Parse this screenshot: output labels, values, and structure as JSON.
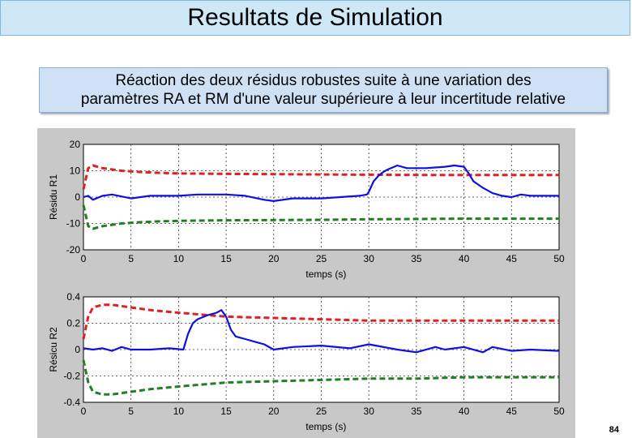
{
  "header": {
    "title": "Resultats de Simulation"
  },
  "subtitle": {
    "line1": "Réaction des deux résidus robustes suite à une variation des",
    "line2": "paramètres RA et RM d'une valeur supérieure à leur incertitude relative"
  },
  "footer": {
    "page_number": "84"
  },
  "colors": {
    "upper_threshold": "#dd2222",
    "residual": "#1010e0",
    "lower_threshold": "#208020",
    "panel": "#c8c8c8"
  },
  "chart_data": [
    {
      "type": "line",
      "title": "",
      "xlabel": "temps (s)",
      "ylabel": "Résidu R1",
      "xlim": [
        0,
        50
      ],
      "ylim": [
        -20,
        20
      ],
      "xticks": [
        0,
        5,
        10,
        15,
        20,
        25,
        30,
        35,
        40,
        45,
        50
      ],
      "yticks": [
        -20,
        -10,
        0,
        10,
        20
      ],
      "grid": true,
      "series": [
        {
          "role": "upper",
          "style": "dashed",
          "color": "#dd2222",
          "x": [
            0,
            0.5,
            1,
            2,
            4,
            6,
            8,
            10,
            15,
            20,
            25,
            30,
            35,
            40,
            45,
            50
          ],
          "values": [
            3,
            11,
            12,
            11,
            10,
            9.5,
            9.2,
            9,
            8.8,
            8.7,
            8.6,
            8.5,
            8.4,
            8.4,
            8.4,
            8.4
          ]
        },
        {
          "role": "lower",
          "style": "dashed",
          "color": "#208020",
          "x": [
            0,
            0.5,
            1,
            2,
            4,
            6,
            8,
            10,
            15,
            20,
            25,
            30,
            35,
            40,
            45,
            50
          ],
          "values": [
            -3,
            -11,
            -12,
            -11,
            -10,
            -9.5,
            -9.2,
            -9,
            -8.8,
            -8.7,
            -8.6,
            -8.4,
            -8.3,
            -8.2,
            -8.2,
            -8.2
          ]
        },
        {
          "role": "residual",
          "style": "solid",
          "color": "#1010e0",
          "x": [
            0,
            0.5,
            1,
            2,
            3,
            5,
            7,
            10,
            12,
            15,
            17,
            19,
            20,
            22,
            25,
            27,
            29,
            29.8,
            30,
            30.5,
            31,
            31.5,
            32,
            33,
            34,
            36,
            38,
            39,
            40,
            40.5,
            41,
            42,
            43,
            44,
            45,
            46,
            47,
            48,
            50
          ],
          "values": [
            0,
            0.5,
            -1,
            0.5,
            1,
            -0.5,
            0.5,
            0.5,
            1,
            1,
            0.5,
            -1,
            -1.5,
            -0.5,
            -0.5,
            0,
            0.5,
            1,
            2,
            6,
            8,
            9.5,
            10.5,
            12,
            11,
            11,
            11.5,
            12,
            11.5,
            9,
            6,
            3.5,
            1.5,
            0.5,
            0,
            1,
            0.5,
            0.5,
            0.5
          ]
        }
      ]
    },
    {
      "type": "line",
      "title": "",
      "xlabel": "temps (s)",
      "ylabel": "Résicu R2",
      "xlim": [
        0,
        50
      ],
      "ylim": [
        -0.4,
        0.4
      ],
      "xticks": [
        0,
        5,
        10,
        15,
        20,
        25,
        30,
        35,
        40,
        45,
        50
      ],
      "yticks": [
        -0.4,
        -0.2,
        0,
        0.2,
        0.4
      ],
      "grid": true,
      "series": [
        {
          "role": "upper",
          "style": "dashed",
          "color": "#dd2222",
          "x": [
            0,
            0.5,
            1,
            2,
            3,
            5,
            7,
            10,
            15,
            20,
            25,
            30,
            35,
            40,
            45,
            50
          ],
          "values": [
            0.08,
            0.25,
            0.32,
            0.34,
            0.34,
            0.32,
            0.3,
            0.28,
            0.25,
            0.24,
            0.23,
            0.22,
            0.22,
            0.22,
            0.22,
            0.22
          ]
        },
        {
          "role": "lower",
          "style": "dashed",
          "color": "#208020",
          "x": [
            0,
            0.5,
            1,
            2,
            3,
            5,
            7,
            10,
            15,
            20,
            25,
            30,
            35,
            40,
            45,
            50
          ],
          "values": [
            -0.08,
            -0.25,
            -0.32,
            -0.34,
            -0.34,
            -0.32,
            -0.3,
            -0.28,
            -0.25,
            -0.24,
            -0.23,
            -0.22,
            -0.22,
            -0.21,
            -0.21,
            -0.21
          ]
        },
        {
          "role": "residual",
          "style": "solid",
          "color": "#1010e0",
          "x": [
            0,
            1,
            2,
            3,
            4,
            5,
            7,
            9,
            10.5,
            11,
            11.5,
            12,
            13,
            14,
            14.5,
            15,
            15.5,
            16,
            17,
            18,
            19,
            20,
            22,
            25,
            28,
            30,
            33,
            35,
            37,
            38,
            40,
            42,
            43,
            45,
            47,
            50
          ],
          "values": [
            0.01,
            0,
            0.01,
            -0.01,
            0.02,
            0.0,
            0.0,
            0.01,
            0.0,
            0.12,
            0.2,
            0.23,
            0.26,
            0.28,
            0.3,
            0.25,
            0.15,
            0.1,
            0.08,
            0.06,
            0.04,
            0.0,
            0.02,
            0.03,
            0.01,
            0.04,
            0.0,
            -0.02,
            0.02,
            0.0,
            0.02,
            -0.02,
            0.02,
            -0.01,
            0.0,
            -0.01
          ]
        }
      ]
    }
  ]
}
